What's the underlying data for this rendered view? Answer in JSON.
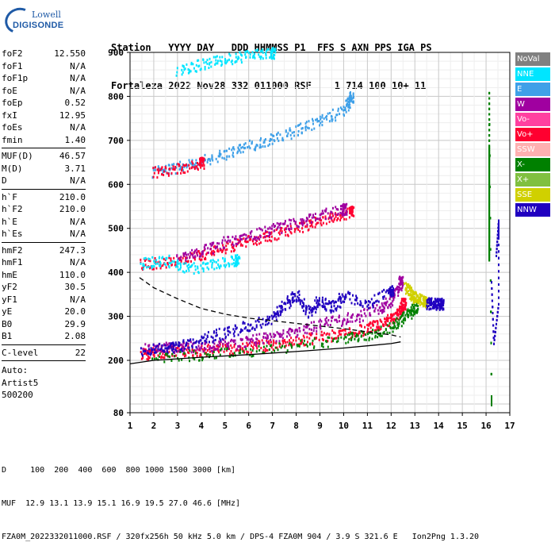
{
  "logo": {
    "line1": "Lowell",
    "line2": "DIGISONDE"
  },
  "header": {
    "line1": "Station   YYYY DAY   DDD HHMMSS P1  FFS S AXN PPS IGA PS",
    "line2": "Fortaleza 2022 Nov28 332 011000 RSF    1 714 100 10+ 11"
  },
  "params_groups": [
    [
      {
        "k": "foF2",
        "v": "12.550"
      },
      {
        "k": "foF1",
        "v": "N/A"
      },
      {
        "k": "foF1p",
        "v": "N/A"
      },
      {
        "k": "foE",
        "v": "N/A"
      },
      {
        "k": "foEp",
        "v": "0.52"
      },
      {
        "k": "fxI",
        "v": "12.95"
      },
      {
        "k": "foEs",
        "v": "N/A"
      },
      {
        "k": "fmin",
        "v": "1.40"
      }
    ],
    [
      {
        "k": "MUF(D)",
        "v": "46.57"
      },
      {
        "k": "M(D)",
        "v": "3.71"
      },
      {
        "k": "D",
        "v": "N/A"
      }
    ],
    [
      {
        "k": "h`F",
        "v": "210.0"
      },
      {
        "k": "h`F2",
        "v": "210.0"
      },
      {
        "k": "h`E",
        "v": "N/A"
      },
      {
        "k": "h`Es",
        "v": "N/A"
      }
    ],
    [
      {
        "k": "hmF2",
        "v": "247.3"
      },
      {
        "k": "hmF1",
        "v": "N/A"
      },
      {
        "k": "hmE",
        "v": "110.0"
      },
      {
        "k": "yF2",
        "v": "30.5"
      },
      {
        "k": "yF1",
        "v": "N/A"
      },
      {
        "k": "yE",
        "v": "20.0"
      },
      {
        "k": "B0",
        "v": "29.9"
      },
      {
        "k": "B1",
        "v": "2.08"
      }
    ],
    [
      {
        "k": "C-level",
        "v": "22"
      }
    ]
  ],
  "autoscale": [
    "Auto:",
    "Artist5",
    "500200"
  ],
  "legend": [
    {
      "label": "NoVal",
      "color": "#808080"
    },
    {
      "label": "NNE",
      "color": "#00e5ff"
    },
    {
      "label": "E",
      "color": "#3fa0e8"
    },
    {
      "label": "W",
      "color": "#a000a0"
    },
    {
      "label": "Vo-",
      "color": "#ff40a0"
    },
    {
      "label": "Vo+",
      "color": "#ff0030"
    },
    {
      "label": "SSW",
      "color": "#ffb0b0"
    },
    {
      "label": "X-",
      "color": "#008000"
    },
    {
      "label": "X+",
      "color": "#80c040"
    },
    {
      "label": "SSE",
      "color": "#d0d000"
    },
    {
      "label": "NNW",
      "color": "#2000c0"
    }
  ],
  "bottom": {
    "line1": "D     100  200  400  600  800 1000 1500 3000 [km]",
    "line2": "MUF  12.9 13.1 13.9 15.1 16.9 19.5 27.0 46.6 [MHz]",
    "line3": "FZA0M_2022332011000.RSF / 320fx256h 50 kHz 5.0 km / DPS-4 FZA0M 904 / 3.9 S 321.6 E   Ion2Png 1.3.20"
  },
  "chart_data": {
    "type": "scatter",
    "xlim": [
      1,
      17
    ],
    "ylim": [
      80,
      900
    ],
    "xticks": [
      1,
      2,
      3,
      4,
      5,
      6,
      7,
      8,
      9,
      10,
      11,
      12,
      13,
      14,
      15,
      16,
      17
    ],
    "yticks": [
      80,
      200,
      300,
      400,
      500,
      600,
      700,
      800,
      900
    ],
    "series": [
      {
        "id": "o-trace-low",
        "color": "#ff0030",
        "points": [
          [
            1.5,
            215
          ],
          [
            2,
            220
          ],
          [
            3,
            222
          ],
          [
            4,
            225
          ],
          [
            5,
            228
          ],
          [
            6,
            232
          ],
          [
            7,
            238
          ],
          [
            8,
            245
          ],
          [
            9,
            255
          ],
          [
            10,
            262
          ],
          [
            11,
            275
          ],
          [
            11.5,
            285
          ],
          [
            12,
            295
          ],
          [
            12.3,
            310
          ],
          [
            12.5,
            330
          ]
        ]
      },
      {
        "id": "o-trace-w",
        "color": "#a000a0",
        "points": [
          [
            1.6,
            228
          ],
          [
            2.5,
            230
          ],
          [
            3.5,
            232
          ],
          [
            4.5,
            235
          ],
          [
            5.5,
            240
          ],
          [
            6.5,
            250
          ],
          [
            7.5,
            262
          ],
          [
            8.5,
            275
          ],
          [
            9.5,
            290
          ],
          [
            10.5,
            300
          ],
          [
            11.5,
            320
          ],
          [
            12,
            340
          ],
          [
            12.4,
            380
          ]
        ]
      },
      {
        "id": "o-trace-nnw",
        "color": "#2000c0",
        "points": [
          [
            1.5,
            225
          ],
          [
            2.5,
            228
          ],
          [
            3,
            232
          ],
          [
            4,
            250
          ],
          [
            5,
            265
          ],
          [
            6,
            280
          ],
          [
            7,
            300
          ],
          [
            7.5,
            330
          ],
          [
            8,
            350
          ],
          [
            8.5,
            310
          ],
          [
            9,
            340
          ],
          [
            9.5,
            320
          ],
          [
            10,
            350
          ],
          [
            11,
            330
          ],
          [
            12,
            360
          ]
        ]
      },
      {
        "id": "x-trace",
        "color": "#008000",
        "points": [
          [
            2,
            210
          ],
          [
            4,
            215
          ],
          [
            6,
            222
          ],
          [
            8,
            235
          ],
          [
            10,
            250
          ],
          [
            11,
            258
          ],
          [
            12,
            275
          ],
          [
            12.5,
            300
          ],
          [
            13,
            320
          ]
        ]
      },
      {
        "id": "cusp-yellow",
        "color": "#d0d000",
        "points": [
          [
            12.6,
            370
          ],
          [
            12.8,
            355
          ],
          [
            13,
            345
          ],
          [
            13.2,
            340
          ],
          [
            13.4,
            335
          ]
        ]
      },
      {
        "id": "cusp-tail",
        "color": "#2000c0",
        "points": [
          [
            13.5,
            330
          ],
          [
            13.7,
            332
          ],
          [
            13.9,
            330
          ],
          [
            14.1,
            330
          ]
        ]
      },
      {
        "id": "second-hop",
        "color": "#ff0030",
        "points": [
          [
            1.5,
            420
          ],
          [
            2.5,
            425
          ],
          [
            3.5,
            435
          ],
          [
            4.5,
            450
          ],
          [
            5.5,
            465
          ],
          [
            6.5,
            480
          ],
          [
            7.5,
            495
          ],
          [
            8.5,
            510
          ],
          [
            9.5,
            525
          ],
          [
            10.3,
            540
          ]
        ]
      },
      {
        "id": "second-hop-w",
        "color": "#a000a0",
        "points": [
          [
            3,
            440
          ],
          [
            4,
            450
          ],
          [
            5,
            470
          ],
          [
            6,
            485
          ],
          [
            7,
            500
          ],
          [
            8,
            515
          ],
          [
            9,
            530
          ],
          [
            10,
            545
          ]
        ]
      },
      {
        "id": "second-hop-c",
        "color": "#00e5ff",
        "points": [
          [
            1.5,
            422
          ],
          [
            2.5,
            430
          ],
          [
            3.5,
            410
          ],
          [
            4.5,
            420
          ],
          [
            5.5,
            430
          ]
        ]
      },
      {
        "id": "third-hop",
        "color": "#3fa0e8",
        "points": [
          [
            2,
            630
          ],
          [
            3,
            640
          ],
          [
            4,
            655
          ],
          [
            5,
            670
          ],
          [
            6,
            690
          ],
          [
            7,
            705
          ],
          [
            8,
            725
          ],
          [
            9,
            745
          ],
          [
            10,
            770
          ],
          [
            10.3,
            800
          ]
        ]
      },
      {
        "id": "third-hop-r",
        "color": "#ff0030",
        "points": [
          [
            2,
            628
          ],
          [
            3,
            638
          ],
          [
            4,
            650
          ]
        ]
      },
      {
        "id": "fourth-hop",
        "color": "#00e5ff",
        "points": [
          [
            3,
            860
          ],
          [
            4,
            875
          ],
          [
            5,
            885
          ],
          [
            6,
            895
          ],
          [
            7,
            900
          ]
        ]
      },
      {
        "id": "vertical-16",
        "color": "#008000",
        "points": [
          [
            16.1,
            430
          ],
          [
            16.1,
            470
          ],
          [
            16.1,
            500
          ],
          [
            16.1,
            550
          ],
          [
            16.1,
            600
          ],
          [
            16.1,
            650
          ],
          [
            16.1,
            690
          ],
          [
            16.1,
            810
          ],
          [
            16.2,
            100
          ],
          [
            16.2,
            120
          ]
        ]
      },
      {
        "id": "vertical-16b",
        "color": "#2000c0",
        "points": [
          [
            16.2,
            380
          ],
          [
            16.3,
            240
          ],
          [
            16.5,
            330
          ],
          [
            16.5,
            480
          ],
          [
            16.5,
            500
          ],
          [
            16.5,
            520
          ],
          [
            16.4,
            440
          ]
        ]
      }
    ],
    "curves": [
      {
        "id": "solid-fit",
        "style": "solid",
        "points": [
          [
            1,
            192
          ],
          [
            2,
            200
          ],
          [
            4,
            207
          ],
          [
            6,
            213
          ],
          [
            8,
            220
          ],
          [
            10,
            228
          ],
          [
            11,
            233
          ],
          [
            12,
            238
          ],
          [
            12.4,
            242
          ]
        ]
      },
      {
        "id": "dashed-fit",
        "style": "dashed",
        "points": [
          [
            1.4,
            388
          ],
          [
            2,
            365
          ],
          [
            3,
            340
          ],
          [
            4,
            318
          ],
          [
            5,
            305
          ],
          [
            6,
            296
          ],
          [
            7,
            290
          ],
          [
            8,
            284
          ],
          [
            9,
            278
          ],
          [
            10,
            272
          ],
          [
            11,
            265
          ],
          [
            12,
            258
          ],
          [
            12.4,
            253
          ]
        ]
      }
    ]
  }
}
